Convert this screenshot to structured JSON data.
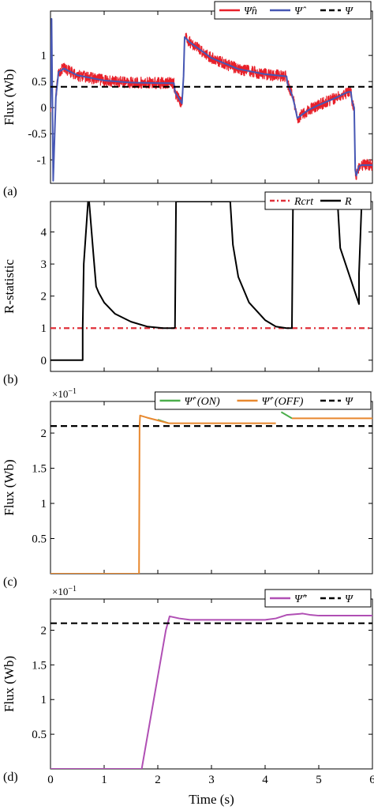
{
  "colors": {
    "red": "#e8202a",
    "blue": "#4657b4",
    "black": "#000000",
    "green": "#4bae4b",
    "orange": "#e8882e",
    "purple": "#b04fb4",
    "redDash": "#e0303a"
  },
  "xlabel": "Time (s)",
  "xticks": [
    0,
    1,
    2,
    3,
    4,
    5,
    6
  ],
  "chart_data": [
    {
      "panel": "(a)",
      "type": "line",
      "ylabel": "Flux (Wb)",
      "ylim": [
        -1.45,
        1.85
      ],
      "xlim": [
        0,
        6
      ],
      "yticks": [
        -1,
        -0.5,
        0,
        0.5,
        1
      ],
      "legend": [
        "Ψ̂n",
        "Ψ̂",
        "Ψ"
      ],
      "legend_position": "top-right",
      "series": [
        {
          "name": "Ψ̂n",
          "color": "red",
          "noisy": true,
          "x": [
            0,
            0.02,
            0.05,
            0.1,
            0.15,
            0.25,
            0.5,
            1,
            1.5,
            2,
            2.3,
            2.32,
            2.45,
            2.48,
            2.5,
            2.6,
            3,
            3.5,
            4,
            4.4,
            4.42,
            4.5,
            4.55,
            4.6,
            4.8,
            5,
            5.3,
            5.5,
            5.55,
            5.6,
            5.62,
            5.66,
            5.68,
            5.7,
            5.75,
            5.8,
            6
          ],
          "y": [
            0,
            1.7,
            -1.4,
            0.2,
            0.68,
            0.75,
            0.62,
            0.52,
            0.48,
            0.47,
            0.47,
            0.3,
            0.08,
            0.6,
            1.35,
            1.25,
            0.95,
            0.74,
            0.64,
            0.6,
            0.45,
            0.25,
            0.05,
            -0.2,
            -0.05,
            0.05,
            0.18,
            0.28,
            0.3,
            0.3,
            0.12,
            0.0,
            -1.2,
            -1.3,
            -1.12,
            -1.1,
            -1.1
          ]
        },
        {
          "name": "Ψ̂",
          "color": "blue",
          "x": [
            0,
            0.02,
            0.05,
            0.1,
            0.15,
            0.25,
            0.5,
            1,
            1.5,
            2,
            2.3,
            2.32,
            2.45,
            2.48,
            2.5,
            2.6,
            3,
            3.5,
            4,
            4.4,
            4.42,
            4.5,
            4.55,
            4.6,
            4.8,
            5,
            5.3,
            5.5,
            5.55,
            5.6,
            5.62,
            5.66,
            5.68,
            5.7,
            5.75,
            5.8,
            6
          ],
          "y": [
            0,
            1.7,
            -1.4,
            0.2,
            0.68,
            0.75,
            0.62,
            0.52,
            0.48,
            0.47,
            0.47,
            0.3,
            0.08,
            0.6,
            1.35,
            1.25,
            0.95,
            0.74,
            0.64,
            0.6,
            0.45,
            0.25,
            0.05,
            -0.2,
            -0.05,
            0.05,
            0.18,
            0.28,
            0.3,
            0.3,
            0.12,
            0.0,
            -1.2,
            -1.3,
            -1.12,
            -1.1,
            -1.1
          ]
        },
        {
          "name": "Ψ",
          "color": "black",
          "dash": true,
          "x": [
            0,
            6
          ],
          "y": [
            0.4,
            0.4
          ]
        }
      ]
    },
    {
      "panel": "(b)",
      "type": "line",
      "ylabel": "R-statistic",
      "ylim": [
        -0.35,
        4.95
      ],
      "xlim": [
        0,
        6
      ],
      "yticks": [
        0,
        1,
        2,
        3,
        4
      ],
      "legend": [
        "Rcrt",
        "R"
      ],
      "legend_position": "top-right",
      "series": [
        {
          "name": "Rcrt",
          "color": "redDash",
          "dash": true,
          "x": [
            0,
            6
          ],
          "y": [
            1,
            1
          ]
        },
        {
          "name": "R",
          "color": "black",
          "x": [
            0,
            0.6,
            0.6,
            0.62,
            0.7,
            0.72,
            0.8,
            0.85,
            0.9,
            1.0,
            1.2,
            1.5,
            1.8,
            2.1,
            2.3,
            2.3,
            2.32,
            2.34,
            3.35,
            3.4,
            3.5,
            3.7,
            4.0,
            4.2,
            4.4,
            4.5,
            4.5,
            4.52,
            5.35,
            5.4,
            5.6,
            5.75,
            5.75,
            5.8
          ],
          "y": [
            0,
            0,
            1,
            3,
            4.95,
            4.95,
            3.3,
            2.3,
            2.1,
            1.8,
            1.45,
            1.2,
            1.05,
            1.0,
            1.0,
            1.0,
            1.02,
            4.95,
            4.95,
            3.6,
            2.6,
            1.8,
            1.25,
            1.05,
            1.0,
            1.0,
            1.05,
            4.95,
            4.95,
            3.5,
            2.5,
            1.75,
            2.7,
            4.95
          ]
        }
      ]
    },
    {
      "panel": "(c)",
      "type": "line",
      "ylabel": "Flux (Wb)",
      "multiplier": "×10",
      "multiplier_exp": "−1",
      "ylim": [
        0.0,
        2.45
      ],
      "xlim": [
        0,
        6
      ],
      "yticks": [
        0.5,
        1,
        1.5,
        2
      ],
      "legend": [
        "Ψ̂′ (ON)",
        "Ψ̂′ (OFF)",
        "Ψ"
      ],
      "legend_position": "top-right",
      "series": [
        {
          "name": "Ψ̂′ (ON)",
          "color": "green",
          "x": [
            2.0,
            2.2
          ],
          "y": [
            2.19,
            2.14
          ],
          "x2": [
            4.3,
            4.5
          ],
          "y2": [
            2.3,
            2.21
          ]
        },
        {
          "name": "Ψ̂′ (OFF)",
          "color": "orange",
          "x": [
            0,
            1.65,
            1.66,
            1.67,
            1.8,
            2.0,
            2.2,
            4.2
          ],
          "y": [
            0,
            0,
            2.1,
            2.25,
            2.22,
            2.18,
            2.14,
            2.14
          ],
          "x2": [
            4.5,
            6.0
          ],
          "y2": [
            2.21,
            2.21
          ]
        },
        {
          "name": "Ψ",
          "color": "black",
          "dash": true,
          "x": [
            0,
            6
          ],
          "y": [
            2.1,
            2.1
          ]
        }
      ]
    },
    {
      "panel": "(d)",
      "type": "line",
      "ylabel": "Flux (Wb)",
      "multiplier": "×10",
      "multiplier_exp": "−1",
      "ylim": [
        0.0,
        2.45
      ],
      "xlim": [
        0,
        6
      ],
      "yticks": [
        0.5,
        1,
        1.5,
        2
      ],
      "legend": [
        "Ψ̂″",
        "Ψ"
      ],
      "legend_position": "top-right",
      "series": [
        {
          "name": "Ψ̂″",
          "color": "purple",
          "x": [
            0,
            1.7,
            2.15,
            2.22,
            2.4,
            2.6,
            3.0,
            4.0,
            4.2,
            4.4,
            4.7,
            4.85,
            5.0,
            6.0
          ],
          "y": [
            0,
            0,
            2.0,
            2.2,
            2.17,
            2.15,
            2.15,
            2.15,
            2.17,
            2.22,
            2.24,
            2.22,
            2.21,
            2.21
          ]
        },
        {
          "name": "Ψ",
          "color": "black",
          "dash": true,
          "x": [
            0,
            6
          ],
          "y": [
            2.1,
            2.1
          ]
        }
      ]
    }
  ]
}
